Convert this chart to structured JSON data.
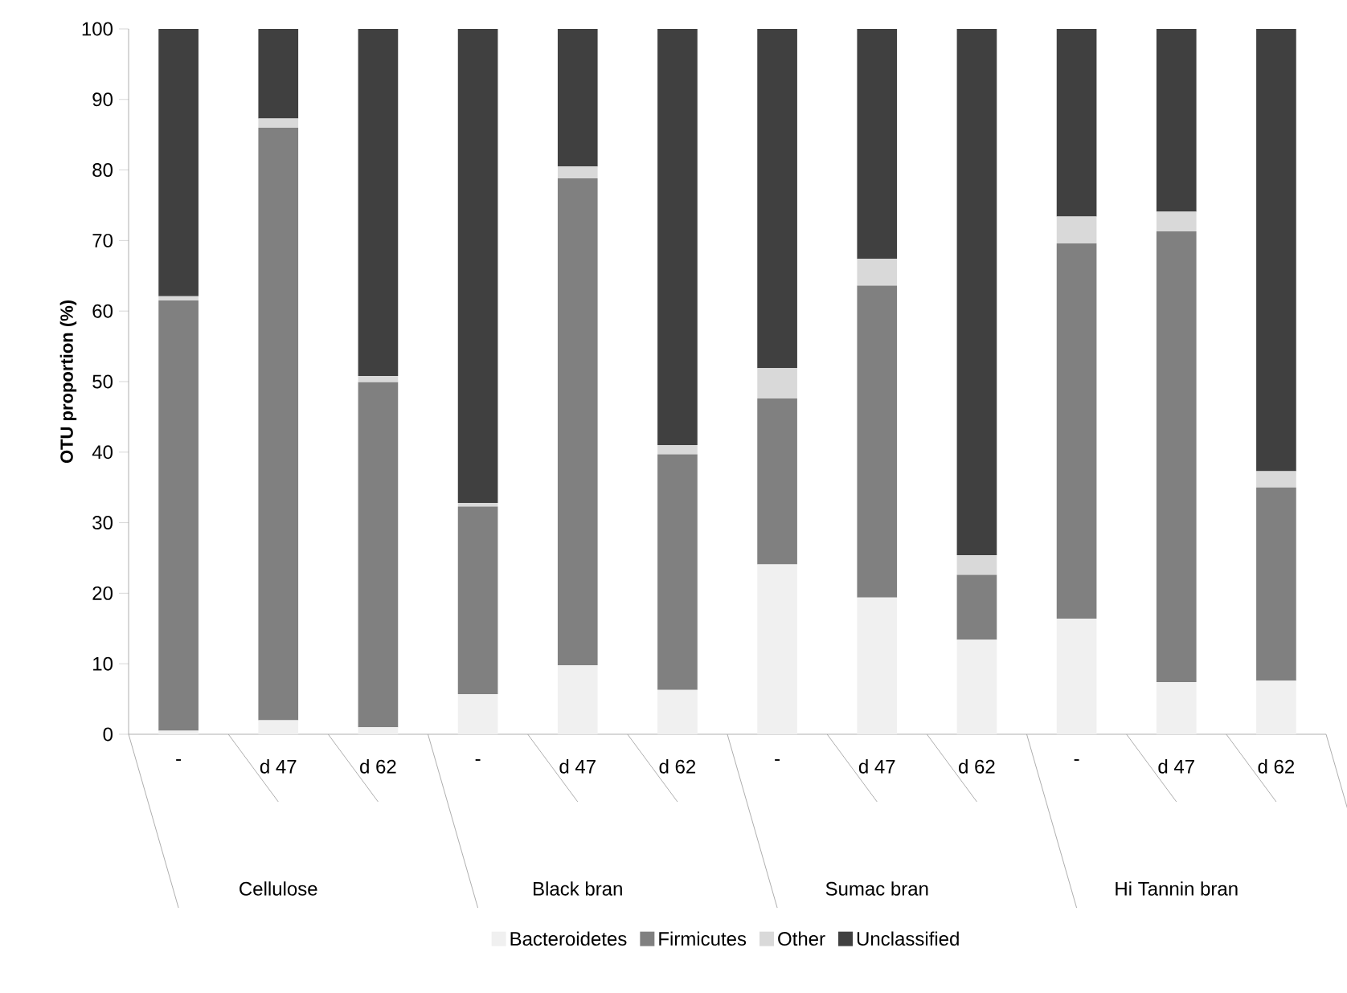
{
  "chart_data": {
    "type": "bar",
    "stacked": true,
    "ylabel": "OTU proportion (%)",
    "categories": [
      "-",
      "d 47",
      "d 62",
      "-",
      "d 47",
      "d 62",
      "-",
      "d 47",
      "d 62",
      "-",
      "d 47",
      "d 62"
    ],
    "annotations": [
      "Cellulose",
      "Black bran",
      "Sumac bran",
      "Hi Tannin bran"
    ],
    "series": [
      {
        "name": "Bacteroidetes",
        "color": "#f0f0f0",
        "values": [
          0.5,
          2,
          1,
          5.7,
          9.8,
          6.3,
          24.1,
          19.4,
          13.4,
          16.4,
          7.4,
          7.6
        ]
      },
      {
        "name": "Firmicutes",
        "color": "#808080",
        "values": [
          61,
          84,
          48.9,
          26.6,
          69,
          33.4,
          23.5,
          44.2,
          9.2,
          53.2,
          63.9,
          27.4
        ]
      },
      {
        "name": "Other",
        "color": "#d9d9d9",
        "values": [
          0.6,
          1.3,
          0.9,
          0.5,
          1.7,
          1.3,
          4.3,
          3.8,
          2.8,
          3.8,
          2.8,
          2.3
        ]
      },
      {
        "name": "Unclassified",
        "color": "#404040",
        "values": [
          37.9,
          12.7,
          49.2,
          67.2,
          19.5,
          59,
          48.1,
          32.6,
          74.6,
          26.6,
          25.9,
          62.7
        ]
      }
    ],
    "ylim": [
      0,
      100
    ],
    "yticks": [
      0,
      10,
      20,
      30,
      40,
      50,
      60,
      70,
      80,
      90,
      100
    ],
    "legend": "bottom",
    "grid": false
  }
}
